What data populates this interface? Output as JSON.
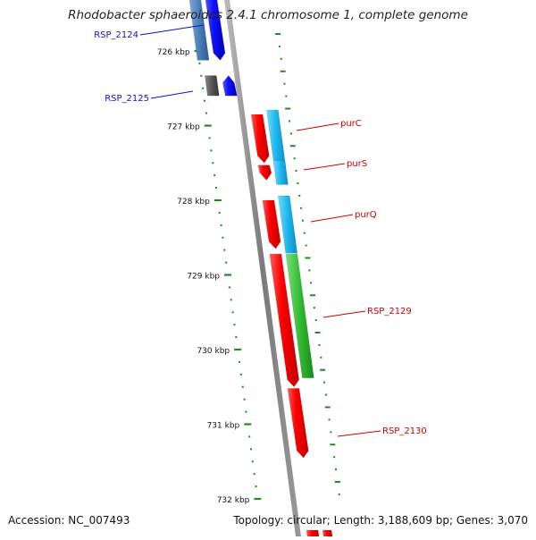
{
  "title": "Rhodobacter sphaeroides 2.4.1 chromosome 1, complete genome",
  "footer": {
    "accession": "Accession: NC_007493",
    "summary": "Topology: circular; Length: 3,188,609 bp; Genes: 3,070"
  },
  "ruler": {
    "ticks": [
      {
        "label": "726 kbp",
        "kbp": 726
      },
      {
        "label": "727 kbp",
        "kbp": 727
      },
      {
        "label": "728 kbp",
        "kbp": 728
      },
      {
        "label": "729 kbp",
        "kbp": 729
      },
      {
        "label": "730 kbp",
        "kbp": 730
      },
      {
        "label": "731 kbp",
        "kbp": 731
      },
      {
        "label": "732 kbp",
        "kbp": 732
      }
    ]
  },
  "genes": [
    {
      "name": "RSP_2124",
      "strand": "reverse",
      "start_kbp": 725.5,
      "end_kbp": 726.1,
      "color": "#1010e0"
    },
    {
      "name": "RSP_2125",
      "strand": "reverse",
      "start_kbp": 726.33,
      "end_kbp": 726.6,
      "color": "#1010e0"
    },
    {
      "name": "purC",
      "strand": "forward",
      "start_kbp": 726.85,
      "end_kbp": 727.5,
      "color": "#e00000"
    },
    {
      "name": "purS",
      "strand": "forward",
      "start_kbp": 727.53,
      "end_kbp": 727.73,
      "color": "#e00000"
    },
    {
      "name": "purQ",
      "strand": "forward",
      "start_kbp": 728.0,
      "end_kbp": 728.65,
      "color": "#e00000"
    },
    {
      "name": "RSP_2129",
      "strand": "forward",
      "start_kbp": 728.72,
      "end_kbp": 730.5,
      "color": "#e00000"
    },
    {
      "name": "RSP_2130",
      "strand": "forward",
      "start_kbp": 730.52,
      "end_kbp": 731.45,
      "color": "#e00000"
    }
  ],
  "colors": {
    "backbone": "#8c8c8c",
    "tick": "#1e8c1e",
    "reverse_label": "#1010cc",
    "forward_label": "#cc0000",
    "cds_forward": "#e00000",
    "cds_reverse": "#1010e0",
    "feature_light_blue": "#22bbee",
    "feature_steel_blue": "#4a7fb8",
    "feature_grey": "#555555",
    "feature_green": "#33bb33"
  }
}
